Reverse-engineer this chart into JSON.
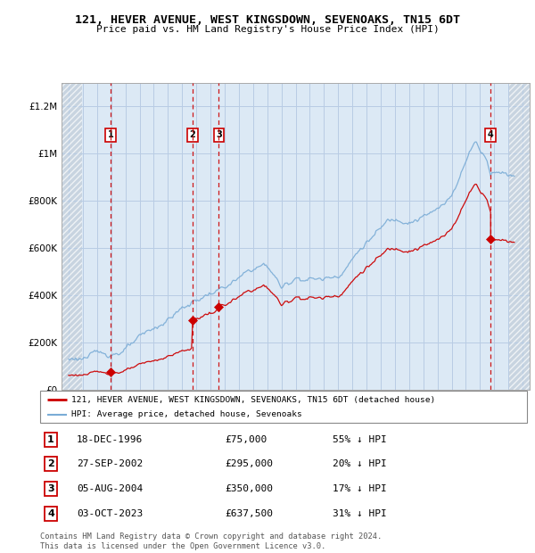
{
  "title": "121, HEVER AVENUE, WEST KINGSDOWN, SEVENOAKS, TN15 6DT",
  "subtitle": "Price paid vs. HM Land Registry's House Price Index (HPI)",
  "sale_dates_num": [
    1996.96,
    2002.74,
    2004.59,
    2023.75
  ],
  "sale_prices": [
    75000,
    295000,
    350000,
    637500
  ],
  "sale_labels": [
    "1",
    "2",
    "3",
    "4"
  ],
  "sale_label_notes": [
    "18-DEC-1996",
    "27-SEP-2002",
    "05-AUG-2004",
    "03-OCT-2023"
  ],
  "sale_price_labels": [
    "£75,000",
    "£295,000",
    "£350,000",
    "£637,500"
  ],
  "sale_hpi_notes": [
    "55% ↓ HPI",
    "20% ↓ HPI",
    "17% ↓ HPI",
    "31% ↓ HPI"
  ],
  "legend_line1": "121, HEVER AVENUE, WEST KINGSDOWN, SEVENOAKS, TN15 6DT (detached house)",
  "legend_line2": "HPI: Average price, detached house, Sevenoaks",
  "footer": "Contains HM Land Registry data © Crown copyright and database right 2024.\nThis data is licensed under the Open Government Licence v3.0.",
  "ylim": [
    0,
    1300000
  ],
  "xlim_start": 1993.5,
  "xlim_end": 2026.5,
  "hatch_left_start": 1993.5,
  "hatch_left_end": 1994.92,
  "hatch_right_start": 2025.08,
  "hatch_right_end": 2026.5,
  "sale_line_color": "#cc0000",
  "hpi_line_color": "#7aacd6",
  "background_color": "#dce9f5",
  "hatch_facecolor": "#c8d4e0",
  "grid_color": "#b8cce4"
}
